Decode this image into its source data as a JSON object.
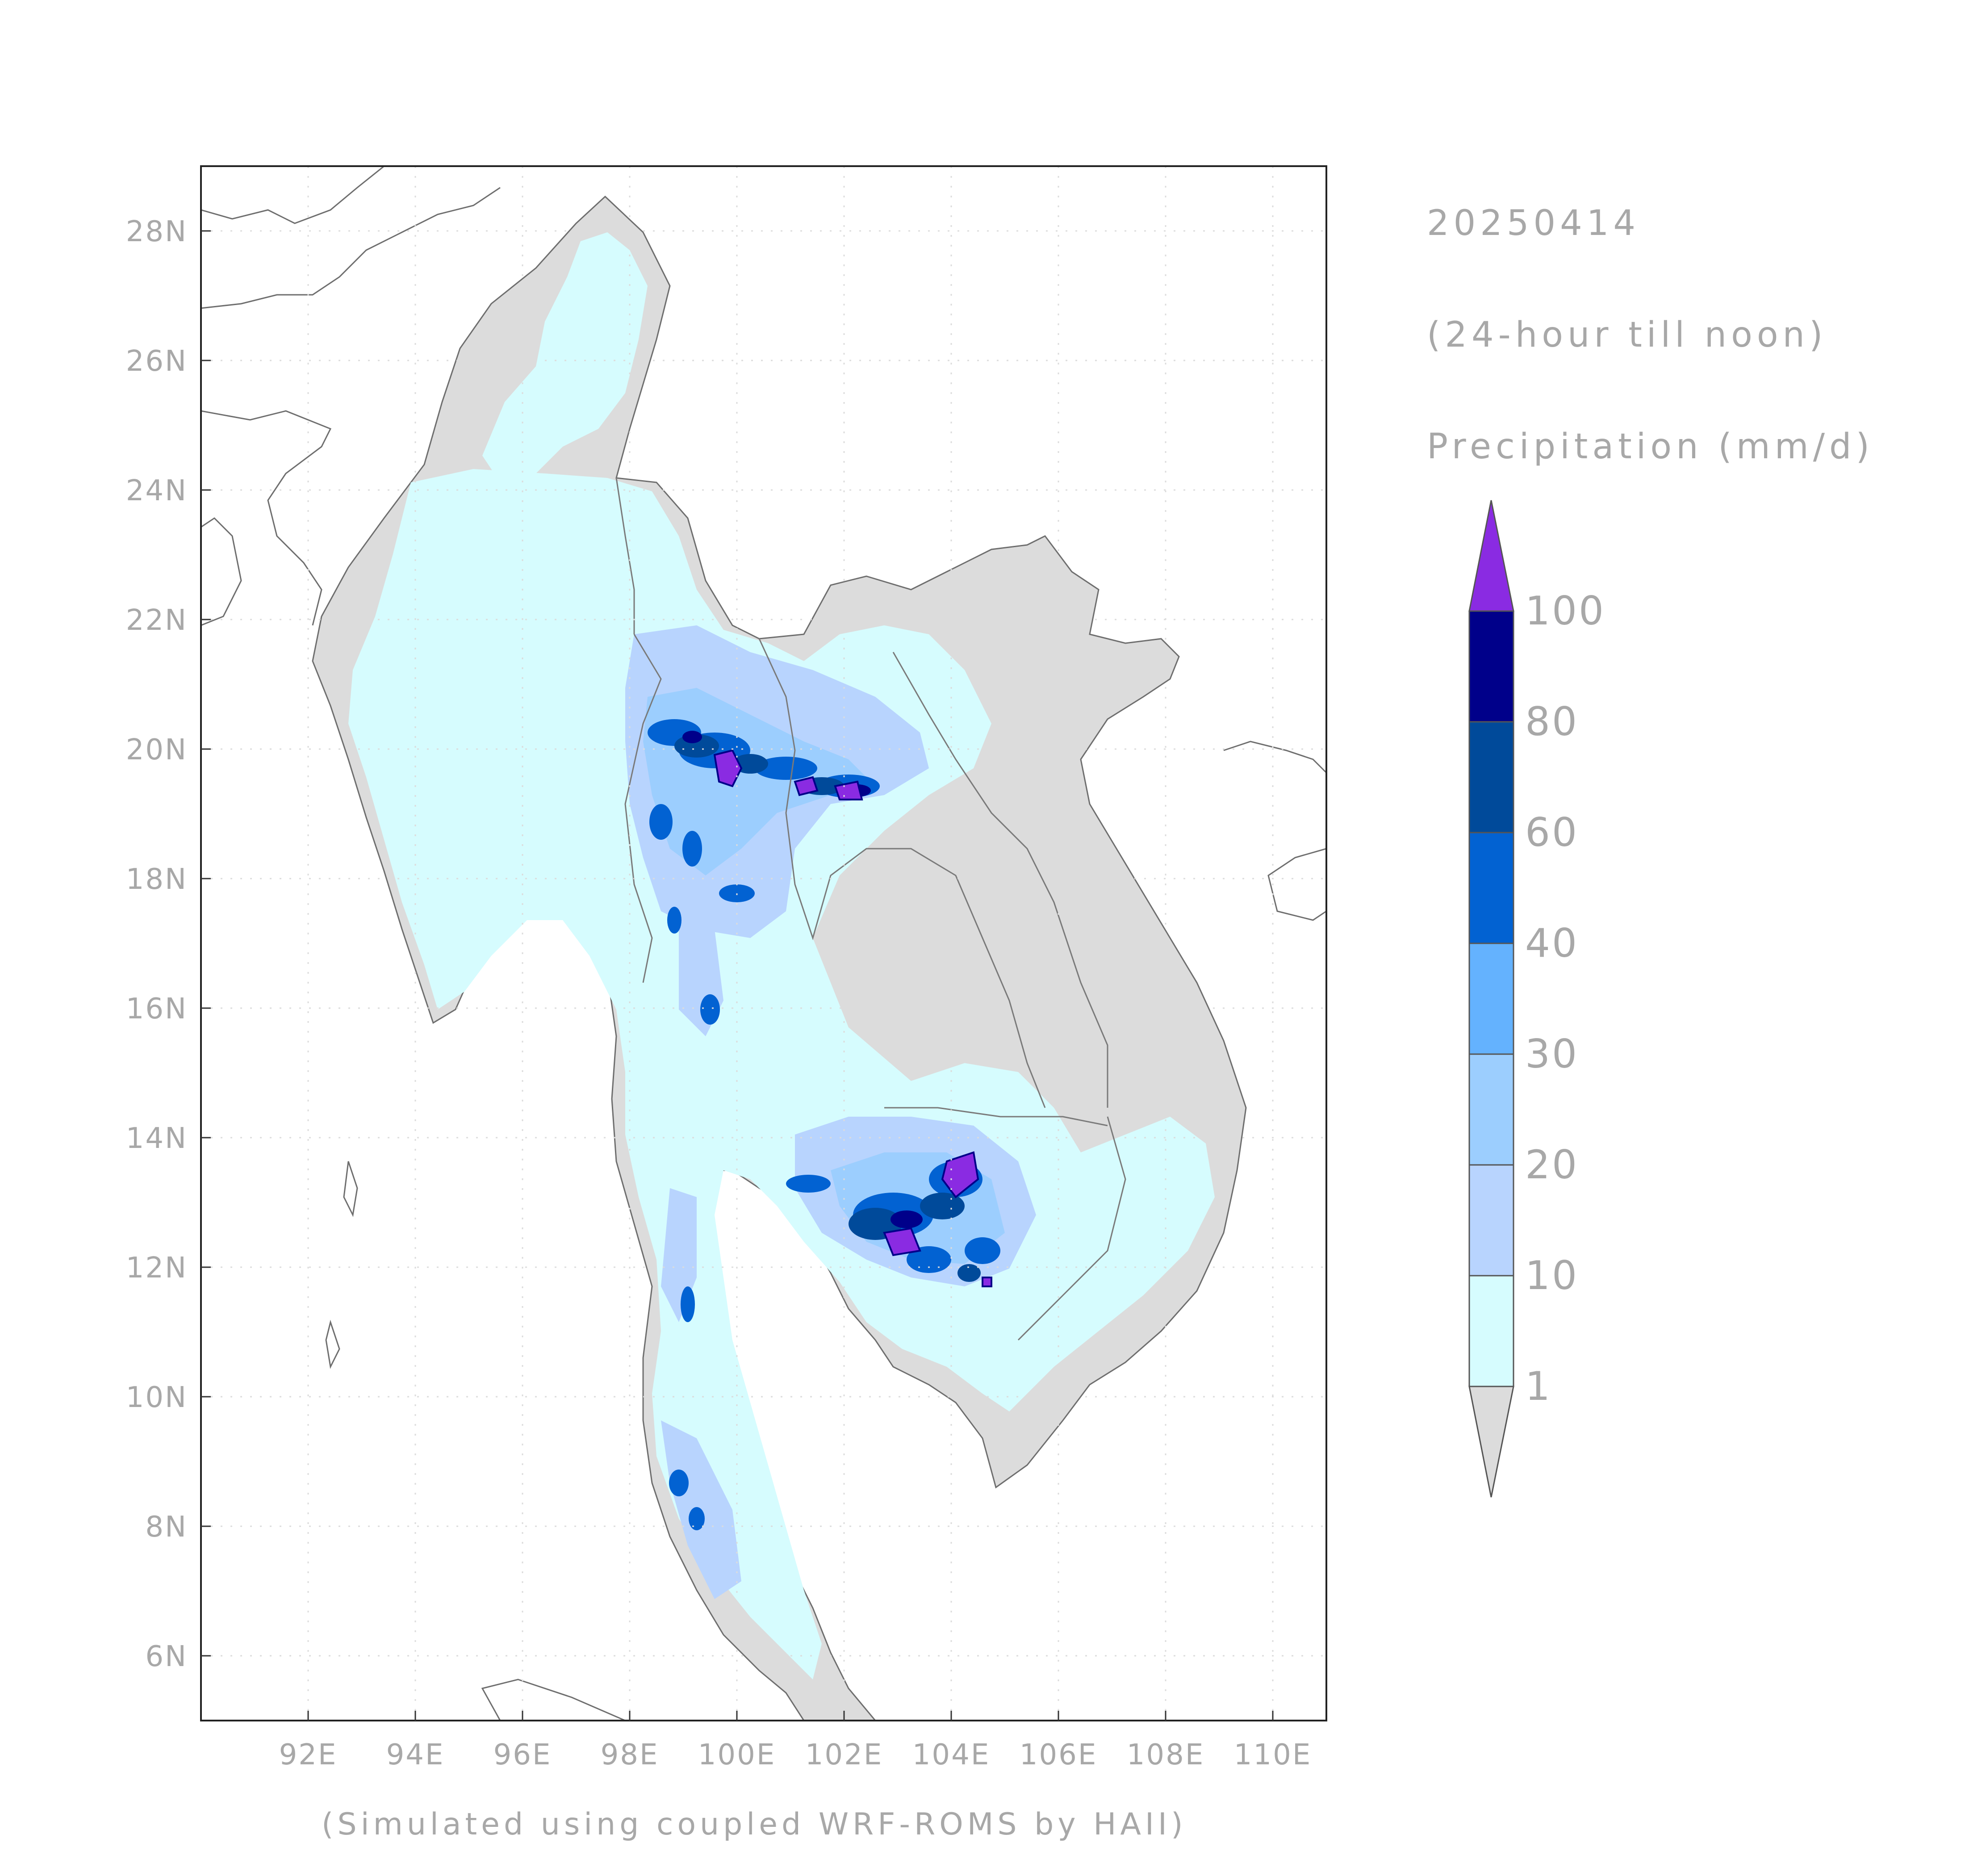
{
  "header": {
    "date": "20250414",
    "period": "(24-hour till noon)",
    "variable": "Precipitation (mm/d)"
  },
  "footer": "(Simulated using coupled WRF-ROMS by HAII)",
  "map": {
    "region": "Mainland Southeast Asia",
    "lon_range": [
      90,
      111
    ],
    "lat_range": [
      5,
      29
    ],
    "gridlines": "dotted",
    "x_ticks": [
      "92E",
      "94E",
      "96E",
      "98E",
      "100E",
      "102E",
      "104E",
      "106E",
      "108E",
      "110E"
    ],
    "y_ticks": [
      "6N",
      "8N",
      "10N",
      "12N",
      "14N",
      "16N",
      "18N",
      "20N",
      "22N",
      "24N",
      "26N",
      "28N"
    ],
    "coastline_color": "#6e6e6e",
    "land_no_rain_color": "#dcdcdc"
  },
  "colorbar": {
    "levels": [
      "1",
      "10",
      "20",
      "30",
      "40",
      "60",
      "80",
      "100"
    ],
    "colors": [
      "#dcdcdc",
      "#d6fcfe",
      "#b8d4fe",
      "#9ccefe",
      "#64b2fe",
      "#0262d2",
      "#004a9a",
      "#00008a",
      "#8a2be2"
    ],
    "under_color": "#dcdcdc",
    "over_color": "#8a2be2"
  }
}
